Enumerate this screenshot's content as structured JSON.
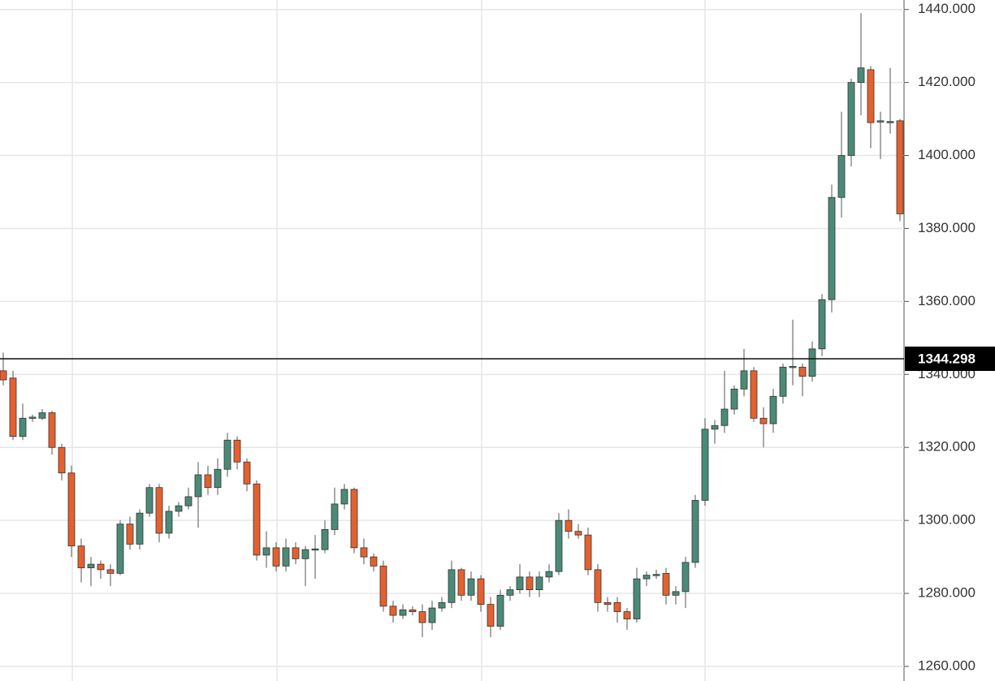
{
  "chart_data": {
    "type": "candlestick",
    "open": [
      1341,
      1339,
      1323,
      1328,
      1328,
      1329.5,
      1320,
      1313,
      1293,
      1287,
      1288,
      1286.5,
      1285.5,
      1299,
      1293.5,
      1302,
      1309,
      1296.5,
      1302.5,
      1304,
      1306.5,
      1312.5,
      1309,
      1314,
      1322,
      1316,
      1310,
      1290.5,
      1292.5,
      1287.5,
      1292.5,
      1289.5,
      1292,
      1292,
      1297.5,
      1304.5,
      1308.5,
      1292.5,
      1290,
      1287.5,
      1276.5,
      1274,
      1275.5,
      1275,
      1272,
      1276,
      1277.5,
      1286.5,
      1279.5,
      1284,
      1277,
      1271,
      1279.5,
      1281,
      1284.5,
      1281,
      1284.5,
      1286,
      1300,
      1297,
      1296,
      1286.5,
      1277.5,
      1277.5,
      1275,
      1273,
      1284,
      1285,
      1285.5,
      1279.5,
      1280.5,
      1288.5,
      1305.5,
      1325,
      1326,
      1330.5,
      1336,
      1341,
      1328,
      1326.5,
      1334,
      1342,
      1342,
      1339.5,
      1347,
      1360.5,
      1388.5,
      1400,
      1420,
      1423.5,
      1409.5,
      1409,
      1409.5
    ],
    "high": [
      1346,
      1341,
      1332,
      1329,
      1330.5,
      1330,
      1321,
      1315,
      1295,
      1290,
      1289,
      1288,
      1300,
      1301,
      1303,
      1310,
      1310,
      1304,
      1305,
      1309,
      1316,
      1315,
      1317,
      1324,
      1323,
      1317,
      1311,
      1297,
      1294,
      1295,
      1294,
      1293,
      1296,
      1300,
      1309,
      1310,
      1309,
      1295,
      1291,
      1289,
      1278,
      1277,
      1276.5,
      1277,
      1278,
      1279,
      1289,
      1287,
      1286,
      1285,
      1279,
      1281,
      1282,
      1288,
      1286,
      1286,
      1288,
      1302,
      1303,
      1299,
      1298,
      1288,
      1279,
      1279,
      1276,
      1287,
      1286,
      1286.5,
      1287,
      1282,
      1290,
      1307,
      1328,
      1327.5,
      1341,
      1337,
      1347,
      1342,
      1331,
      1336,
      1343,
      1355,
      1343,
      1349,
      1362,
      1392,
      1412,
      1421,
      1439,
      1424.5,
      1412,
      1424,
      1410
    ],
    "low": [
      1337,
      1322,
      1322,
      1327,
      1327.5,
      1318,
      1311,
      1290,
      1283,
      1282,
      1284,
      1282,
      1285,
      1292,
      1292,
      1301,
      1294,
      1295,
      1301,
      1303,
      1298,
      1307,
      1307,
      1312,
      1314,
      1308,
      1289,
      1287,
      1286,
      1286,
      1288,
      1282,
      1284,
      1291,
      1296,
      1303,
      1291,
      1288,
      1286,
      1275,
      1272,
      1273,
      1274,
      1268,
      1270,
      1275,
      1276,
      1278,
      1278,
      1275,
      1268,
      1270,
      1278,
      1280,
      1279,
      1279,
      1283,
      1285,
      1295,
      1295,
      1285,
      1275,
      1275,
      1272,
      1270,
      1272,
      1282,
      1284,
      1277,
      1277,
      1276,
      1287,
      1304,
      1321,
      1324,
      1329,
      1334,
      1327,
      1320,
      1324,
      1332,
      1337,
      1334,
      1338,
      1345,
      1357,
      1383,
      1397,
      1411,
      1402,
      1399,
      1406,
      1382
    ],
    "close": [
      1338.5,
      1323,
      1328,
      1328.3,
      1329.5,
      1320,
      1313,
      1293,
      1287,
      1288,
      1286.5,
      1285.5,
      1299,
      1293.5,
      1302,
      1309,
      1296.5,
      1302.5,
      1304,
      1306.5,
      1312.5,
      1309,
      1314,
      1322,
      1316,
      1310,
      1290.5,
      1292.5,
      1287.5,
      1292.5,
      1289.5,
      1292,
      1292.2,
      1297.5,
      1304.5,
      1308.5,
      1292.5,
      1290,
      1287.5,
      1276.5,
      1274,
      1275.5,
      1275,
      1272,
      1276,
      1277.5,
      1286.5,
      1279.5,
      1284,
      1277,
      1271,
      1279.5,
      1281,
      1284.5,
      1281,
      1284.5,
      1286,
      1300,
      1297,
      1296,
      1286.5,
      1277.5,
      1277,
      1275,
      1273,
      1284,
      1285,
      1285.2,
      1279.5,
      1280.5,
      1288.5,
      1305.5,
      1325,
      1326,
      1330.5,
      1336,
      1341,
      1328,
      1326.5,
      1334,
      1342,
      1342.2,
      1339.5,
      1347,
      1360.5,
      1388.5,
      1400,
      1420,
      1424,
      1409,
      1409.5,
      1409.3,
      1384
    ],
    "up_color": "#4b8a78",
    "down_color": "#e4612f",
    "ylim": [
      1256,
      1442.6
    ],
    "yticks": [
      {
        "value": 1260,
        "label": "1260.000"
      },
      {
        "value": 1280,
        "label": "1280.000"
      },
      {
        "value": 1300,
        "label": "1300.000"
      },
      {
        "value": 1320,
        "label": "1320.000"
      },
      {
        "value": 1340,
        "label": "1340.000"
      },
      {
        "value": 1360,
        "label": "1360.000"
      },
      {
        "value": 1380,
        "label": "1380.000"
      },
      {
        "value": 1400,
        "label": "1400.000"
      },
      {
        "value": 1420,
        "label": "1420.000"
      },
      {
        "value": 1440,
        "label": "1440.000"
      }
    ],
    "grid": true,
    "price_line": 1344.298
  }
}
